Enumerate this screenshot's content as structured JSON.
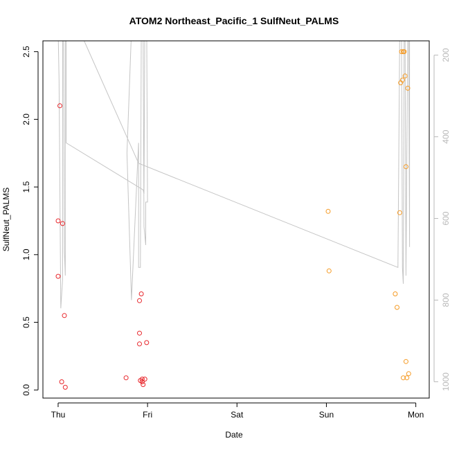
{
  "chart_data": {
    "type": "scatter",
    "title": "ATOM2 Northeast_Pacific_1 SulfNeut_PALMS",
    "xlabel": "Date",
    "ylabel": "SulfNeut_PALMS",
    "x_ticks": [
      "Thu",
      "Fri",
      "Sat",
      "Sun",
      "Mon"
    ],
    "x_range_days": [
      -0.17,
      4.15
    ],
    "ylim": [
      -0.06,
      2.58
    ],
    "y_ticks": [
      "0.0",
      "0.5",
      "1.0",
      "1.5",
      "2.0",
      "2.5"
    ],
    "y2_label": "",
    "y2_ticks": [
      "200",
      "400",
      "600",
      "800",
      "1000"
    ],
    "y2_lim": [
      1040,
      165
    ],
    "y2_inverted": true,
    "grid": false,
    "colors": {
      "red": "#e8262b",
      "orange": "#f59a23",
      "gray": "#c4c4c4"
    },
    "series": [
      {
        "color": "red",
        "points": [
          [
            0.02,
            2.1
          ],
          [
            0.0,
            1.25
          ],
          [
            0.05,
            1.23
          ],
          [
            0.0,
            0.84
          ],
          [
            0.07,
            0.55
          ],
          [
            0.04,
            0.06
          ],
          [
            0.08,
            0.02
          ],
          [
            0.76,
            0.09
          ],
          [
            0.93,
            0.71
          ],
          [
            0.91,
            0.66
          ],
          [
            0.91,
            0.42
          ],
          [
            0.91,
            0.34
          ],
          [
            0.99,
            0.35
          ],
          [
            0.92,
            0.07
          ],
          [
            0.94,
            0.08
          ],
          [
            0.95,
            0.04
          ],
          [
            0.97,
            0.08
          ],
          [
            0.94,
            0.06
          ]
        ]
      },
      {
        "color": "orange",
        "points": [
          [
            3.02,
            1.32
          ],
          [
            3.03,
            0.88
          ],
          [
            3.77,
            0.71
          ],
          [
            3.79,
            0.61
          ],
          [
            3.82,
            1.31
          ],
          [
            3.83,
            2.27
          ],
          [
            3.84,
            2.5
          ],
          [
            3.85,
            2.29
          ],
          [
            3.86,
            2.5
          ],
          [
            3.87,
            2.5
          ],
          [
            3.88,
            2.32
          ],
          [
            3.89,
            1.65
          ],
          [
            3.91,
            2.23
          ],
          [
            3.86,
            0.09
          ],
          [
            3.9,
            0.09
          ],
          [
            3.92,
            0.12
          ],
          [
            3.89,
            0.21
          ]
        ]
      }
    ],
    "altitude_line": [
      [
        0.0,
        140
      ],
      [
        0.01,
        260
      ],
      [
        0.03,
        820
      ],
      [
        0.05,
        750
      ],
      [
        0.05,
        140
      ],
      [
        0.06,
        140
      ],
      [
        0.07,
        680
      ],
      [
        0.08,
        740
      ],
      [
        0.08,
        140
      ],
      [
        0.09,
        140
      ],
      [
        0.09,
        415
      ],
      [
        0.95,
        530
      ],
      [
        0.96,
        540
      ],
      [
        0.97,
        100
      ],
      [
        0.99,
        100
      ],
      [
        1.0,
        560
      ],
      [
        0.98,
        560
      ],
      [
        0.98,
        665
      ],
      [
        0.96,
        620
      ],
      [
        0.95,
        140
      ],
      [
        0.93,
        140
      ],
      [
        0.92,
        720
      ],
      [
        0.9,
        720
      ],
      [
        0.9,
        415
      ],
      [
        0.89,
        460
      ],
      [
        0.82,
        800
      ],
      [
        0.77,
        440
      ],
      [
        0.82,
        140
      ],
      [
        0.24,
        140
      ],
      [
        0.9,
        465
      ],
      [
        3.8,
        720
      ],
      [
        3.82,
        140
      ],
      [
        3.84,
        140
      ],
      [
        3.85,
        720
      ],
      [
        3.86,
        760
      ],
      [
        3.87,
        140
      ],
      [
        3.88,
        140
      ],
      [
        3.89,
        740
      ],
      [
        3.91,
        140
      ],
      [
        3.92,
        140
      ],
      [
        3.93,
        670
      ],
      [
        3.93,
        140
      ]
    ]
  }
}
